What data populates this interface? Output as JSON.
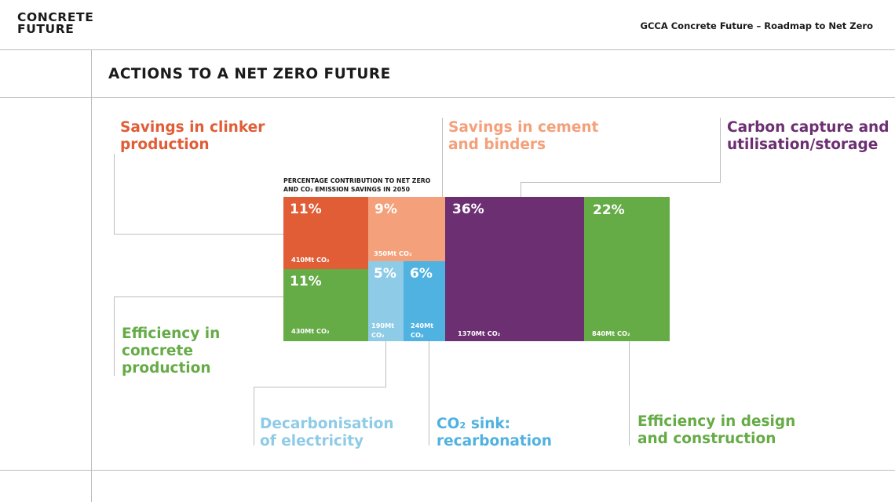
{
  "header": {
    "logo_line1": "CONCRETE",
    "logo_line2": "FUTURE",
    "doc_title": "GCCA Concrete Future – Roadmap to Net Zero"
  },
  "section_title": "ACTIONS TO A NET ZERO FUTURE",
  "chart_data": {
    "type": "treemap",
    "title_line1": "PERCENTAGE CONTRIBUTION TO NET ZERO",
    "title_line2": "AND CO₂ EMISSION SAVINGS IN 2050",
    "categories": [
      {
        "label_line1": "Savings in clinker",
        "label_line2": "production",
        "color": "#e05d36",
        "segments": [
          {
            "percent_label": "11%",
            "savings_label": "410Mt CO₂",
            "percent": 11,
            "savings_mt": 410
          }
        ]
      },
      {
        "label_line1": "Savings in cement",
        "label_line2": "and binders",
        "color": "#f4a07a",
        "segments": [
          {
            "percent_label": "9%",
            "savings_label": "350Mt CO₂",
            "percent": 9,
            "savings_mt": 350
          }
        ]
      },
      {
        "label_line1": "Carbon capture and",
        "label_line2": "utilisation/storage",
        "color": "#6b2f72",
        "segments": [
          {
            "percent_label": "36%",
            "savings_label": "1370Mt CO₂",
            "percent": 36,
            "savings_mt": 1370
          }
        ]
      },
      {
        "label_line1": "Efficiency in",
        "label_line2": "concrete",
        "label_line3": "production",
        "color": "#65ab46",
        "segments": [
          {
            "percent_label": "11%",
            "savings_label": "430Mt CO₂",
            "percent": 11,
            "savings_mt": 430
          }
        ]
      },
      {
        "label_line1": "Decarbonisation",
        "label_line2": "of electricity",
        "color": "#8ecbe6",
        "segments": [
          {
            "percent_label": "5%",
            "savings_label_line1": "190Mt",
            "savings_label_line2": "CO₂",
            "percent": 5,
            "savings_mt": 190
          }
        ]
      },
      {
        "label_line1": "CO₂ sink:",
        "label_line2": "recarbonation",
        "color": "#50b2e0",
        "segments": [
          {
            "percent_label": "6%",
            "savings_label_line1": "240Mt",
            "savings_label_line2": "CO₂",
            "percent": 6,
            "savings_mt": 240
          }
        ]
      },
      {
        "label_line1": "Efficiency in design",
        "label_line2": "and construction",
        "color": "#65ab46",
        "segments": [
          {
            "percent_label": "22%",
            "savings_label": "840Mt CO₂",
            "percent": 22,
            "savings_mt": 840
          }
        ]
      }
    ]
  }
}
